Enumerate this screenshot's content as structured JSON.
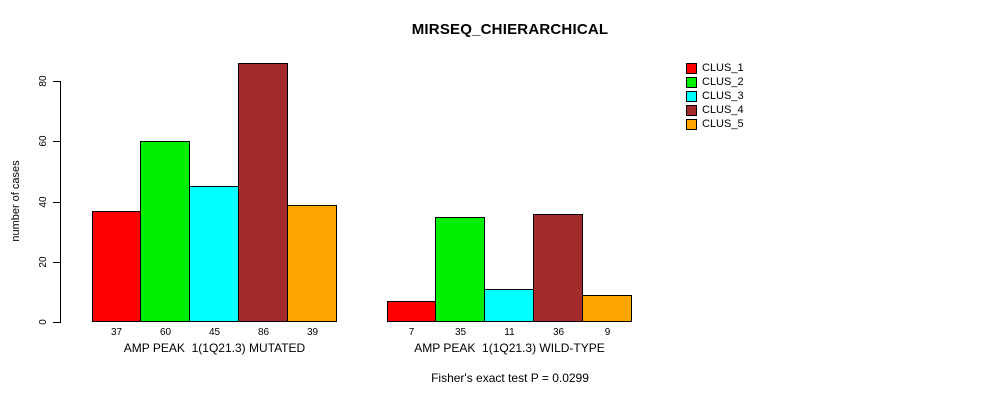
{
  "title": "MIRSEQ_CHIERARCHICAL",
  "chart_data": {
    "type": "bar",
    "title": "MIRSEQ_CHIERARCHICAL",
    "ylabel": "number of cases",
    "ylim": [
      0,
      80
    ],
    "yticks": [
      0,
      20,
      40,
      60,
      80
    ],
    "grid": false,
    "legend_position": "right",
    "categories": [
      "AMP PEAK  1(1Q21.3) MUTATED",
      "AMP PEAK  1(1Q21.3) WILD-TYPE"
    ],
    "series": [
      {
        "name": "CLUS_1",
        "color": "#FF0000",
        "values": [
          37,
          7
        ]
      },
      {
        "name": "CLUS_2",
        "color": "#00EE00",
        "values": [
          60,
          35
        ]
      },
      {
        "name": "CLUS_3",
        "color": "#00FFFF",
        "values": [
          45,
          11
        ]
      },
      {
        "name": "CLUS_4",
        "color": "#A52A2A",
        "values": [
          86,
          36
        ]
      },
      {
        "name": "CLUS_5",
        "color": "#FFA500",
        "values": [
          39,
          9
        ]
      },
      {
        "name": "bar_value_labels_group_1",
        "labels": [
          "37",
          "60",
          "45",
          "86",
          "39"
        ]
      },
      {
        "name": "bar_value_labels_group_2",
        "labels": [
          "7",
          "35",
          "11",
          "36",
          "9"
        ]
      }
    ],
    "annotation": "Fisher's exact test P = 0.0299"
  },
  "footer": "Fisher's exact test P = 0.0299"
}
